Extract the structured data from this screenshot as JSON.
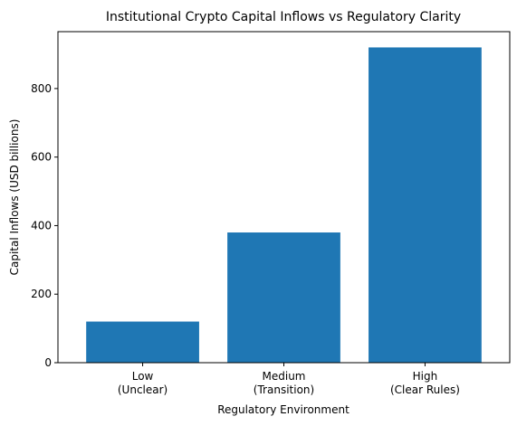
{
  "chart_data": {
    "type": "bar",
    "title": "Institutional Crypto Capital Inflows vs Regulatory Clarity",
    "xlabel": "Regulatory Environment",
    "ylabel": "Capital Inflows (USD billions)",
    "categories": [
      [
        "Low",
        "(Unclear)"
      ],
      [
        "Medium",
        "(Transition)"
      ],
      [
        "High",
        "(Clear Rules)"
      ]
    ],
    "values": [
      120,
      380,
      920
    ],
    "ylim": [
      0,
      966
    ],
    "yticks": [
      0,
      200,
      400,
      600,
      800
    ],
    "bar_color": "#1f77b4",
    "grid": false,
    "legend": "none"
  }
}
